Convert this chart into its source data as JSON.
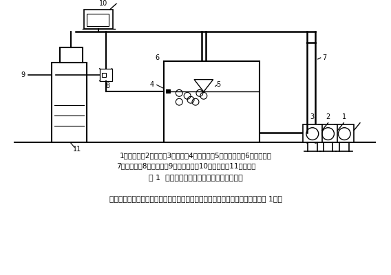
{
  "title": "图 1  喷雾式流态化液氮速冻食品装置示意图",
  "caption_line1": "1、变频器；2、电机；3、风机；4、分布板；5、雾化喷嘴；6、实验台；",
  "caption_line2": "7、回风管；8、电磁阀；9、高压氮气；10、计算机；11、杜瓦瓶",
  "bottom_text": "现把喷雾式流态化液氮速冻装置与一般平板速冻机的结构与性能比较如下（见表 1）：",
  "bg_color": "#ffffff"
}
